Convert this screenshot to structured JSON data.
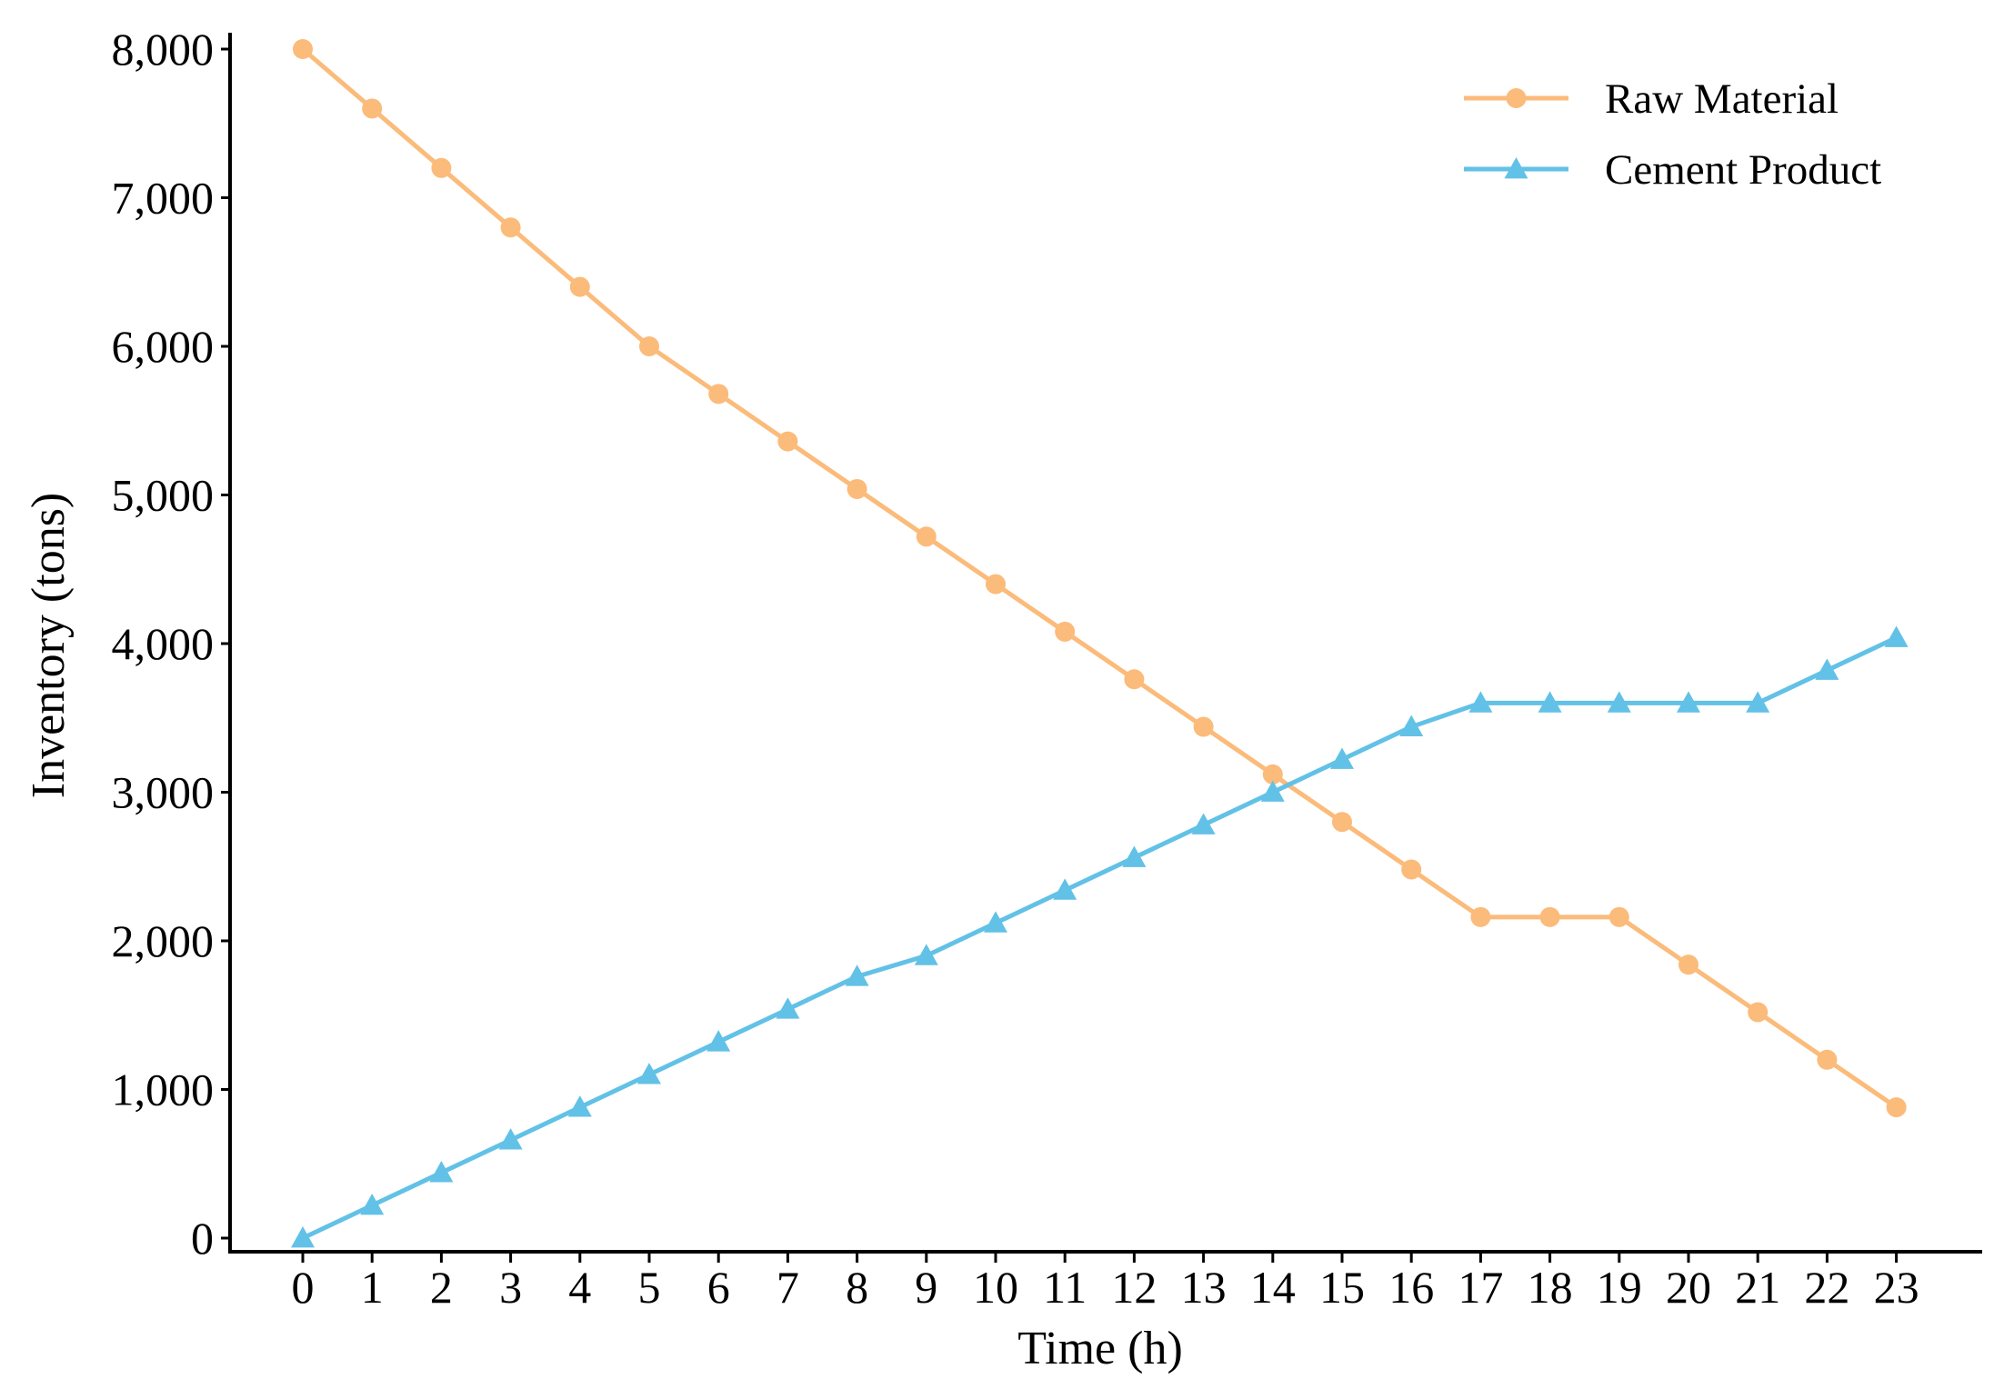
{
  "chart_data": {
    "type": "line",
    "title": "",
    "xlabel": "Time (h)",
    "ylabel": "Inventory (tons)",
    "x": [
      0,
      1,
      2,
      3,
      4,
      5,
      6,
      7,
      8,
      9,
      10,
      11,
      12,
      13,
      14,
      15,
      16,
      17,
      18,
      19,
      20,
      21,
      22,
      23
    ],
    "x_tick_labels": [
      "0",
      "1",
      "2",
      "3",
      "4",
      "5",
      "6",
      "7",
      "8",
      "9",
      "10",
      "11",
      "12",
      "13",
      "14",
      "15",
      "16",
      "17",
      "18",
      "19",
      "20",
      "21",
      "22",
      "23"
    ],
    "ylim": [
      0,
      8000
    ],
    "y_ticks": [
      0,
      1000,
      2000,
      3000,
      4000,
      5000,
      6000,
      7000,
      8000
    ],
    "y_tick_labels": [
      "0",
      "1,000",
      "2,000",
      "3,000",
      "4,000",
      "5,000",
      "6,000",
      "7,000",
      "8,000"
    ],
    "grid": false,
    "legend_position": "top-right",
    "series": [
      {
        "name": "Raw Material",
        "color": "#FBBB7A",
        "marker": "circle",
        "values": [
          8000,
          7600,
          7200,
          6800,
          6400,
          6000,
          5680,
          5360,
          5040,
          4720,
          4400,
          4080,
          3760,
          3440,
          3120,
          2800,
          2480,
          2160,
          2160,
          2160,
          1840,
          1520,
          1200,
          880
        ]
      },
      {
        "name": "Cement Product",
        "color": "#62C1E6",
        "marker": "triangle",
        "values": [
          0,
          220,
          440,
          660,
          880,
          1100,
          1320,
          1540,
          1760,
          1900,
          2120,
          2340,
          2560,
          2780,
          3000,
          3220,
          3440,
          3600,
          3600,
          3600,
          3600,
          3600,
          3820,
          4040
        ]
      }
    ]
  }
}
